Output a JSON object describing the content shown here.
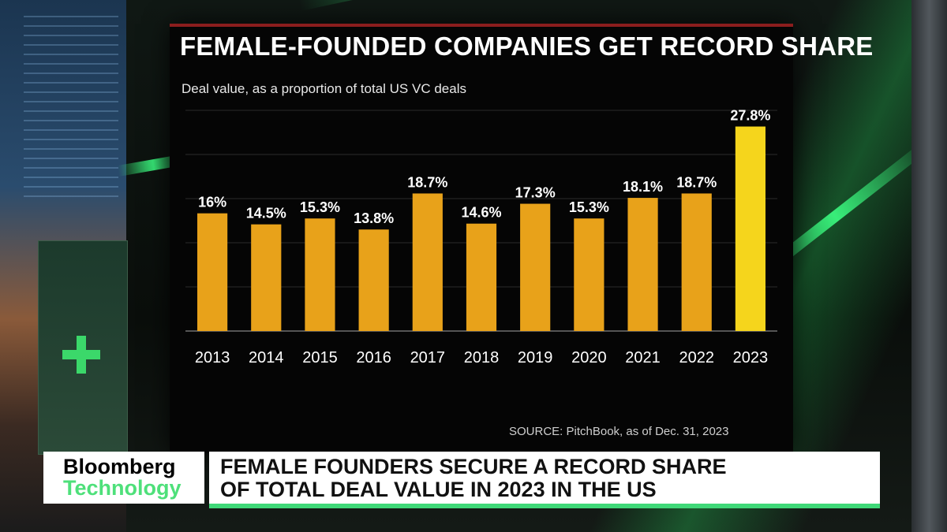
{
  "broadcast": {
    "brand_line1": "Bloomberg",
    "brand_line2": "Technology",
    "headline_line1": "FEMALE FOUNDERS SECURE A RECORD SHARE",
    "headline_line2": "OF TOTAL DEAL VALUE IN 2023 IN THE US"
  },
  "source": "SOURCE: PitchBook, as of Dec. 31, 2023",
  "colors": {
    "bar": "#e8a21a",
    "bar_highlight": "#f5d51c",
    "accent_green": "#3fd878"
  },
  "chart_data": {
    "type": "bar",
    "title": "FEMALE-FOUNDED COMPANIES GET RECORD SHARE",
    "subtitle": "Deal value, as a proportion of total US VC deals",
    "categories": [
      "2013",
      "2014",
      "2015",
      "2016",
      "2017",
      "2018",
      "2019",
      "2020",
      "2021",
      "2022",
      "2023"
    ],
    "values": [
      16,
      14.5,
      15.3,
      13.8,
      18.7,
      14.6,
      17.3,
      15.3,
      18.1,
      18.7,
      27.8
    ],
    "data_labels": [
      "16%",
      "14.5%",
      "15.3%",
      "13.8%",
      "18.7%",
      "14.6%",
      "17.3%",
      "15.3%",
      "18.1%",
      "18.7%",
      "27.8%"
    ],
    "highlight_category": "2023",
    "xlabel": "",
    "ylabel": "",
    "ylim": [
      0,
      30
    ],
    "grid": true,
    "legend": "none"
  }
}
